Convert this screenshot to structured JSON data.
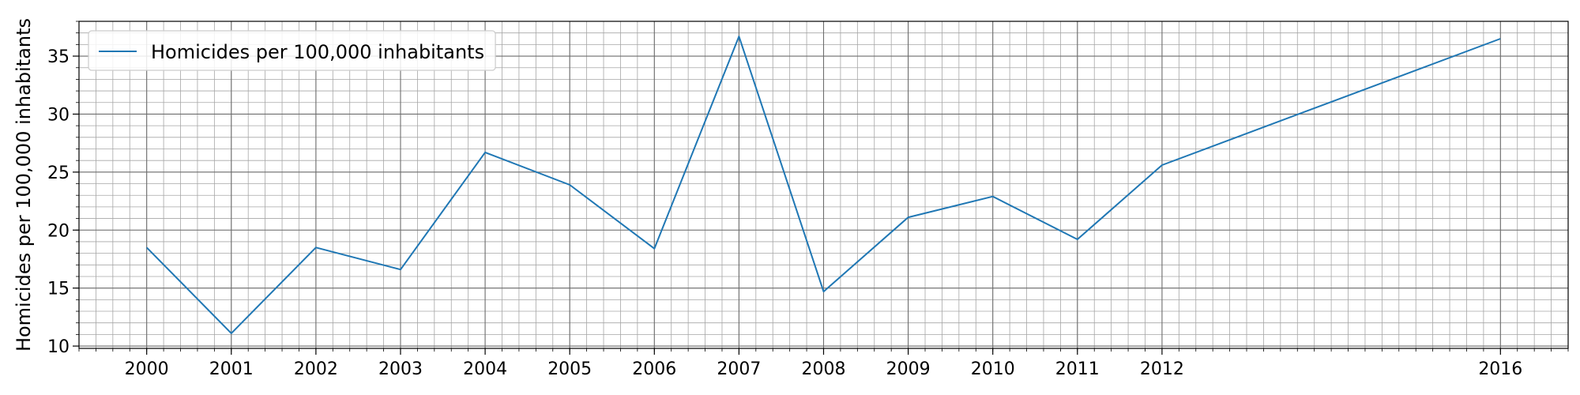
{
  "chart_data": {
    "type": "line",
    "title": "",
    "xlabel": "",
    "ylabel": "Homicides per 100,000 inhabitants",
    "x": [
      2000,
      2001,
      2002,
      2003,
      2004,
      2005,
      2006,
      2007,
      2008,
      2009,
      2010,
      2011,
      2012,
      2016
    ],
    "x_tick_labels": [
      "2000",
      "2001",
      "2002",
      "2003",
      "2004",
      "2005",
      "2006",
      "2007",
      "2008",
      "2009",
      "2010",
      "2011",
      "2012",
      "2016"
    ],
    "xlim": [
      1999.2,
      2016.8
    ],
    "ylim": [
      9.8,
      38.0
    ],
    "y_ticks": [
      10,
      15,
      20,
      25,
      30,
      35
    ],
    "y_tick_labels": [
      "10",
      "15",
      "20",
      "25",
      "30",
      "35"
    ],
    "series": [
      {
        "name": "Homicides per 100,000 inhabitants",
        "color": "#1f77b4",
        "values": [
          18.5,
          11.1,
          18.5,
          16.6,
          26.7,
          23.9,
          18.4,
          36.7,
          14.7,
          21.1,
          22.9,
          19.2,
          25.6,
          36.5
        ]
      }
    ],
    "grid": true,
    "minor_grid": true,
    "legend_position": "upper left"
  }
}
